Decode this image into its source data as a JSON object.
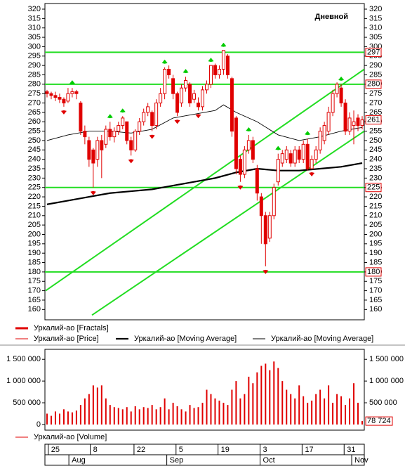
{
  "chart_data": [
    {
      "type": "candlestick",
      "label": "Дневной",
      "series": [
        {
          "name": "Уркалий-ао [Price]",
          "color": "#e00000",
          "open": [
            276,
            275,
            274,
            273,
            272,
            271,
            275,
            276,
            270,
            255,
            250,
            245,
            240,
            250,
            248,
            256,
            252,
            255,
            258,
            260,
            250,
            245,
            255,
            260,
            265,
            265,
            258,
            270,
            275,
            288,
            283,
            275,
            270,
            278,
            280,
            272,
            270,
            268,
            277,
            280,
            290,
            285,
            288,
            295,
            283,
            262,
            240,
            232,
            245,
            250,
            235,
            220,
            210,
            198,
            210,
            228,
            238,
            240,
            243,
            238,
            245,
            240,
            248,
            235,
            240,
            245,
            250,
            255,
            265,
            275,
            278,
            270,
            255,
            258,
            262,
            258
          ],
          "high": [
            277,
            276,
            276,
            275,
            273,
            278,
            278,
            277,
            271,
            258,
            252,
            246,
            252,
            253,
            258,
            260,
            257,
            260,
            263,
            260,
            252,
            256,
            262,
            267,
            270,
            266,
            272,
            278,
            289,
            290,
            285,
            276,
            280,
            284,
            281,
            277,
            273,
            279,
            282,
            290,
            291,
            290,
            298,
            296,
            284,
            263,
            242,
            247,
            253,
            252,
            237,
            222,
            212,
            212,
            227,
            243,
            245,
            247,
            245,
            247,
            247,
            250,
            251,
            242,
            247,
            257,
            260,
            268,
            277,
            281,
            280,
            272,
            265,
            266,
            264,
            263
          ],
          "low": [
            273,
            272,
            271,
            270,
            268,
            270,
            273,
            272,
            253,
            248,
            236,
            225,
            236,
            230,
            246,
            250,
            249,
            253,
            256,
            248,
            242,
            244,
            253,
            258,
            263,
            255,
            256,
            268,
            272,
            283,
            272,
            263,
            268,
            276,
            268,
            270,
            266,
            266,
            275,
            278,
            283,
            283,
            285,
            283,
            252,
            232,
            228,
            230,
            243,
            238,
            218,
            195,
            183,
            196,
            208,
            226,
            236,
            238,
            236,
            236,
            238,
            238,
            234,
            235,
            238,
            243,
            248,
            253,
            263,
            273,
            268,
            253,
            253,
            248,
            255,
            256
          ],
          "close": [
            275,
            274,
            273,
            272,
            270,
            275,
            276,
            275,
            255,
            252,
            240,
            238,
            250,
            245,
            256,
            252,
            255,
            258,
            262,
            250,
            245,
            255,
            260,
            265,
            268,
            258,
            270,
            275,
            288,
            285,
            275,
            265,
            278,
            282,
            270,
            275,
            268,
            277,
            280,
            290,
            285,
            288,
            298,
            285,
            255,
            235,
            232,
            245,
            250,
            240,
            222,
            210,
            195,
            210,
            225,
            240,
            243,
            245,
            238,
            245,
            240,
            248,
            235,
            240,
            245,
            255,
            258,
            265,
            275,
            280,
            270,
            255,
            262,
            260,
            258,
            261
          ]
        }
      ],
      "fractals": {
        "name": "Уркалий-ао [Fractals]",
        "up_color": "#00cc00",
        "down_color": "#e00000",
        "up": [
          6,
          15,
          18,
          28,
          33,
          39,
          42,
          48,
          55,
          62,
          70
        ],
        "down": [
          4,
          11,
          20,
          25,
          31,
          36,
          46,
          52,
          63
        ]
      },
      "moving_averages": [
        {
          "name": "Уркалий-ао [Moving Average]",
          "color": "#000000",
          "width": 2.2,
          "x": [
            0,
            5,
            10,
            15,
            20,
            25,
            30,
            35,
            40,
            45,
            50,
            55,
            60,
            65,
            70,
            75
          ],
          "values": [
            216,
            218,
            220,
            222,
            223,
            224,
            226,
            228,
            230,
            233,
            235,
            234,
            234,
            235,
            236,
            238
          ]
        },
        {
          "name": "Уркалий-ао [Moving Average]",
          "color": "#000000",
          "width": 0.9,
          "x": [
            0,
            5,
            10,
            15,
            20,
            25,
            30,
            35,
            40,
            42,
            45,
            50,
            55,
            60,
            65,
            70,
            75
          ],
          "values": [
            250,
            253,
            255,
            255,
            254,
            256,
            262,
            264,
            266,
            269,
            265,
            260,
            253,
            250,
            252,
            255,
            257
          ]
        }
      ],
      "levels": {
        "color": "#22dd22",
        "values": [
          297,
          280,
          225,
          180
        ]
      },
      "channel": [
        {
          "x": [
            -0.33,
            75.5
          ],
          "values": [
            170,
            288
          ]
        },
        {
          "x": [
            10.7,
            75.5
          ],
          "values": [
            157,
            255
          ]
        }
      ],
      "xlim": [
        -0.5,
        75.5
      ],
      "ylim": [
        154.5,
        323
      ],
      "yticks": [
        320,
        315,
        310,
        305,
        300,
        295,
        290,
        285,
        280,
        275,
        270,
        265,
        260,
        255,
        250,
        245,
        240,
        235,
        230,
        225,
        220,
        215,
        210,
        205,
        200,
        195,
        190,
        185,
        180,
        175,
        170,
        165,
        160
      ]
    },
    {
      "type": "bar",
      "series": [
        {
          "name": "Уркалий-ао [Volume]",
          "color": "#e00000",
          "values": [
            250000,
            200000,
            300000,
            250000,
            350000,
            300000,
            280000,
            320000,
            450000,
            600000,
            700000,
            900000,
            850000,
            900000,
            600000,
            450000,
            400000,
            380000,
            350000,
            400000,
            300000,
            420000,
            350000,
            400000,
            380000,
            450000,
            350000,
            400000,
            600000,
            350000,
            500000,
            420000,
            350000,
            300000,
            450000,
            380000,
            400000,
            500000,
            800000,
            700000,
            600000,
            550000,
            500000,
            450000,
            800000,
            1000000,
            600000,
            700000,
            1100000,
            950000,
            1200000,
            1350000,
            1400000,
            1250000,
            1450000,
            1300000,
            1000000,
            800000,
            700000,
            600000,
            900000,
            650000,
            500000,
            550000,
            700000,
            800000,
            600000,
            900000,
            500000,
            700000,
            650000,
            450000,
            600000,
            950000,
            500000,
            78724
          ],
          "value_labels": {
            "75": "78 724"
          }
        }
      ],
      "xlim": [
        -0.5,
        75.5
      ],
      "ylim": [
        -130000,
        1730000
      ],
      "yticks": [
        {
          "value": 1500000,
          "label": "1 500 000"
        },
        {
          "value": 1000000,
          "label": "1 000 000"
        },
        {
          "value": 500000,
          "label": "500 000"
        },
        0
      ],
      "xticks": [
        {
          "value": 0.3,
          "label": "25"
        },
        {
          "value": 10.3,
          "label": "8"
        },
        {
          "value": 20.7,
          "label": "22"
        },
        {
          "value": 30.7,
          "label": "5"
        },
        {
          "value": 40.7,
          "label": "19"
        },
        {
          "value": 50.7,
          "label": "3"
        },
        {
          "value": 60.7,
          "label": "17"
        },
        {
          "value": 70.7,
          "label": "31"
        }
      ],
      "months": [
        {
          "value": 5.2,
          "label": "Aug"
        },
        {
          "value": 28.5,
          "label": "Sep"
        },
        {
          "value": 50.7,
          "label": "Oct"
        },
        {
          "value": 72.5,
          "label": "Nov"
        }
      ]
    }
  ]
}
